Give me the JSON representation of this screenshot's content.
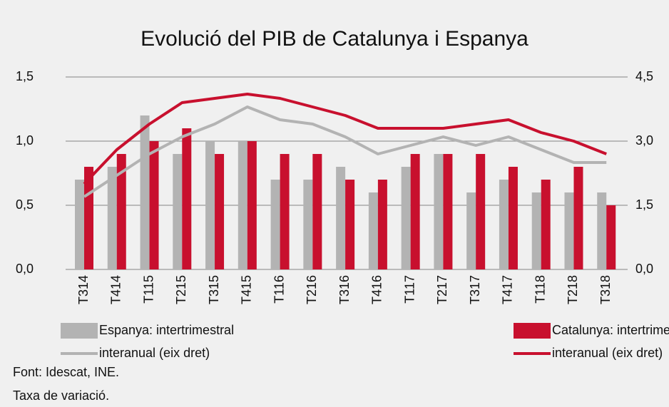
{
  "chart_data": {
    "type": "bar",
    "title": "Evolució del PIB de Catalunya i Espanya",
    "categories": [
      "T314",
      "T414",
      "T115",
      "T215",
      "T315",
      "T415",
      "T116",
      "T216",
      "T316",
      "T416",
      "T117",
      "T217",
      "T317",
      "T417",
      "T118",
      "T218",
      "T318"
    ],
    "series": [
      {
        "name": "Espanya: intertrimestral",
        "type": "bar",
        "color": "#b3b3b3",
        "values": [
          0.7,
          0.8,
          1.2,
          0.9,
          1.0,
          1.0,
          0.7,
          0.7,
          0.8,
          0.6,
          0.8,
          0.9,
          0.6,
          0.7,
          0.6,
          0.6,
          0.6
        ]
      },
      {
        "name": "Catalunya: intertrimestral",
        "type": "bar",
        "color": "#c8102e",
        "values": [
          0.8,
          0.9,
          1.0,
          1.1,
          0.9,
          1.0,
          0.9,
          0.9,
          0.7,
          0.7,
          0.9,
          0.9,
          0.9,
          0.8,
          0.7,
          0.8,
          0.5
        ]
      },
      {
        "name": "interanual (eix dret)",
        "type": "line",
        "axis": "y2",
        "color": "#b3b3b3",
        "values": [
          1.7,
          2.2,
          2.7,
          3.1,
          3.4,
          3.8,
          3.5,
          3.4,
          3.1,
          2.7,
          2.9,
          3.1,
          2.9,
          3.1,
          2.8,
          2.5,
          2.5
        ]
      },
      {
        "name": "interanual (eix dret)",
        "type": "line",
        "axis": "y2",
        "color": "#c8102e",
        "values": [
          2.0,
          2.8,
          3.4,
          3.9,
          4.0,
          4.1,
          4.0,
          3.8,
          3.6,
          3.3,
          3.3,
          3.3,
          3.4,
          3.5,
          3.2,
          3.0,
          2.7
        ]
      }
    ],
    "ylim": [
      0,
      1.5
    ],
    "yticks": [
      {
        "value": 0,
        "label": "0,0"
      },
      {
        "value": 0.5,
        "label": "0,5"
      },
      {
        "value": 1.0,
        "label": "1,0"
      },
      {
        "value": 1.5,
        "label": "1,5"
      }
    ],
    "y2lim": [
      0,
      4.5
    ],
    "y2ticks": [
      {
        "value": 0,
        "label": "0,0"
      },
      {
        "value": 1.5,
        "label": "1,5"
      },
      {
        "value": 3.0,
        "label": "3,0"
      },
      {
        "value": 4.5,
        "label": "4,5"
      }
    ],
    "grid": true,
    "notes": [
      "Font: Idescat, INE.",
      "Taxa de variació."
    ]
  }
}
